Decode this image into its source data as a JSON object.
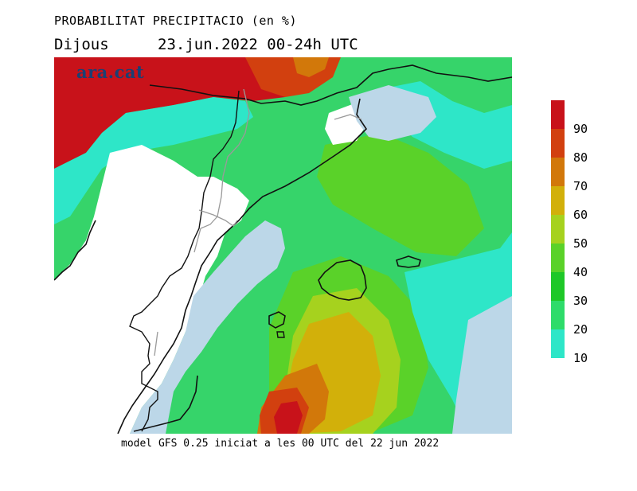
{
  "header": {
    "title": "PROBABILITAT PRECIPITACIO (en %)",
    "day": "Dijous",
    "date_range": "23.jun.2022 00-24h UTC"
  },
  "watermark": "ara.cat",
  "footer": "model GFS 0.25 iniciat a les 00 UTC del 22 jun 2022",
  "legend": {
    "labels": [
      "90",
      "80",
      "70",
      "60",
      "50",
      "40",
      "30",
      "20",
      "10"
    ],
    "colors": [
      "#c8121a",
      "#d2400f",
      "#d2780a",
      "#d2b00a",
      "#a6d21e",
      "#5ad229",
      "#1ec828",
      "#2edc6a",
      "#2ee6c8"
    ]
  },
  "map_colors": {
    "background": "#36d46a",
    "sea": "#bcd7e8",
    "land_no_data": "#ffffff",
    "p10": "#2ee6c8",
    "p20": "#2edc6a",
    "p30": "#1ec828",
    "p40": "#5ad229",
    "p50": "#a6d21e",
    "p60": "#d2b00a",
    "p70": "#d2780a",
    "p80": "#d2400f",
    "p90": "#c8121a"
  }
}
